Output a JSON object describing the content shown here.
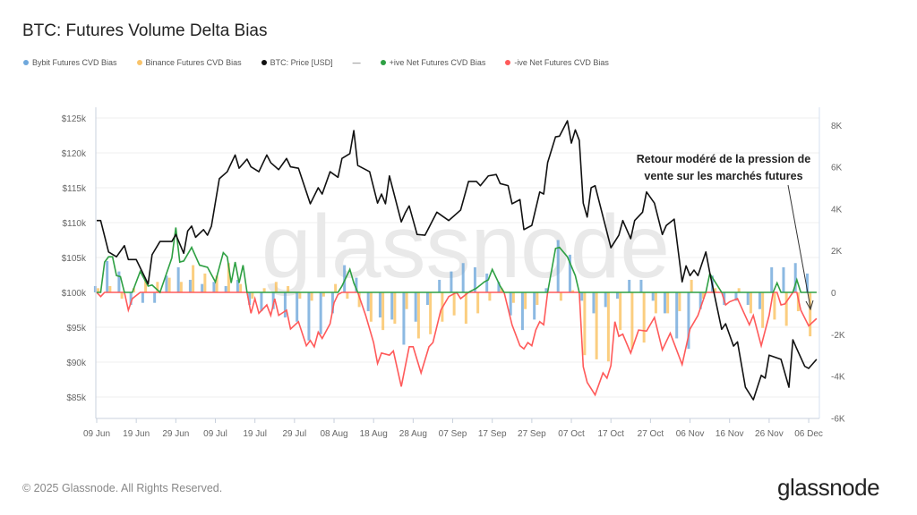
{
  "title": "BTC: Futures Volume Delta Bias",
  "legend": [
    {
      "label": "Bybit Futures CVD Bias",
      "color": "#6fa8dc"
    },
    {
      "label": "Binance Futures CVD Bias",
      "color": "#f9c46b"
    },
    {
      "label": "BTC: Price [USD]",
      "color": "#111111"
    },
    {
      "label": "—",
      "color": "#555555"
    },
    {
      "label": "+ive Net Futures CVD Bias",
      "color": "#2ea043"
    },
    {
      "label": "-ive Net Futures CVD Bias",
      "color": "#ff5a5a"
    }
  ],
  "footer": "© 2025 Glassnode. All Rights Reserved.",
  "logo": "glassnode",
  "watermark": "glassnode",
  "chart_data": {
    "type": "bar+line",
    "title": "BTC: Futures Volume Delta Bias",
    "annotation": [
      "Retour modéré de la pression de",
      "vente sur les marchés futures"
    ],
    "grid": true,
    "legend_position": "top-left",
    "x_ticks": [
      {
        "label": "09 Jun",
        "date": "2025-06-09"
      },
      {
        "label": "19 Jun",
        "date": "2025-06-19"
      },
      {
        "label": "29 Jun",
        "date": "2025-06-29"
      },
      {
        "label": "09 Jul",
        "date": "2025-07-09"
      },
      {
        "label": "19 Jul",
        "date": "2025-07-19"
      },
      {
        "label": "29 Jul",
        "date": "2025-07-29"
      },
      {
        "label": "08 Aug",
        "date": "2025-08-08"
      },
      {
        "label": "18 Aug",
        "date": "2025-08-18"
      },
      {
        "label": "28 Aug",
        "date": "2025-08-28"
      },
      {
        "label": "07 Sep",
        "date": "2025-09-07"
      },
      {
        "label": "17 Sep",
        "date": "2025-09-17"
      },
      {
        "label": "27 Sep",
        "date": "2025-09-27"
      },
      {
        "label": "07 Oct",
        "date": "2025-10-07"
      },
      {
        "label": "17 Oct",
        "date": "2025-10-17"
      },
      {
        "label": "27 Oct",
        "date": "2025-10-27"
      },
      {
        "label": "06 Nov",
        "date": "2025-11-06"
      },
      {
        "label": "16 Nov",
        "date": "2025-11-16"
      },
      {
        "label": "26 Nov",
        "date": "2025-11-26"
      },
      {
        "label": "06 Dec",
        "date": "2025-12-06"
      }
    ],
    "left_axis": {
      "unit": "USD (thousands)",
      "ylim": [
        82,
        128
      ],
      "ticks": [
        {
          "label": "$125k",
          "value": 125
        },
        {
          "label": "$120k",
          "value": 120
        },
        {
          "label": "$115k",
          "value": 115
        },
        {
          "label": "$110k",
          "value": 110
        },
        {
          "label": "$105k",
          "value": 105
        },
        {
          "label": "$100k",
          "value": 100
        },
        {
          "label": "$95k",
          "value": 95
        },
        {
          "label": "$90k",
          "value": 90
        },
        {
          "label": "$85k",
          "value": 85
        }
      ]
    },
    "right_axis": {
      "ylim": [
        -6000,
        8500
      ],
      "ticks": [
        {
          "label": "8K",
          "value": 8000
        },
        {
          "label": "6K",
          "value": 6000
        },
        {
          "label": "4K",
          "value": 4000
        },
        {
          "label": "2K",
          "value": 2000
        },
        {
          "label": "0",
          "value": 0
        },
        {
          "label": "-2K",
          "value": -2000
        },
        {
          "label": "-4K",
          "value": -4000
        },
        {
          "label": "-6K",
          "value": -6000
        }
      ]
    },
    "bars": {
      "dates": [
        "2025-06-09",
        "2025-06-12",
        "2025-06-15",
        "2025-06-18",
        "2025-06-21",
        "2025-06-24",
        "2025-06-27",
        "2025-06-30",
        "2025-07-03",
        "2025-07-06",
        "2025-07-09",
        "2025-07-12",
        "2025-07-15",
        "2025-07-18",
        "2025-07-21",
        "2025-07-24",
        "2025-07-27",
        "2025-07-30",
        "2025-08-02",
        "2025-08-05",
        "2025-08-08",
        "2025-08-11",
        "2025-08-14",
        "2025-08-17",
        "2025-08-20",
        "2025-08-23",
        "2025-08-26",
        "2025-08-29",
        "2025-09-01",
        "2025-09-04",
        "2025-09-07",
        "2025-09-10",
        "2025-09-13",
        "2025-09-16",
        "2025-09-19",
        "2025-09-22",
        "2025-09-25",
        "2025-09-28",
        "2025-10-01",
        "2025-10-04",
        "2025-10-07",
        "2025-10-10",
        "2025-10-13",
        "2025-10-16",
        "2025-10-19",
        "2025-10-22",
        "2025-10-25",
        "2025-10-28",
        "2025-10-31",
        "2025-11-03",
        "2025-11-06",
        "2025-11-09",
        "2025-11-12",
        "2025-11-15",
        "2025-11-18",
        "2025-11-21",
        "2025-11-24",
        "2025-11-27",
        "2025-11-30",
        "2025-12-03",
        "2025-12-06"
      ],
      "bybit": [
        300,
        1500,
        1000,
        -600,
        -500,
        -500,
        800,
        1200,
        600,
        400,
        500,
        300,
        600,
        -600,
        -900,
        -800,
        -1200,
        -1400,
        -2300,
        -2000,
        -1000,
        1300,
        700,
        -900,
        -1200,
        -1300,
        -2500,
        -1400,
        -600,
        600,
        1000,
        1400,
        1200,
        900,
        500,
        -1100,
        -1800,
        -1300,
        200,
        2500,
        1800,
        -400,
        -1000,
        -700,
        -300,
        600,
        600,
        -400,
        -1000,
        -2200,
        -2700,
        -800,
        800,
        -600,
        -400,
        -600,
        -800,
        1200,
        1200,
        1400,
        900
      ],
      "binance": [
        200,
        300,
        -300,
        200,
        600,
        500,
        700,
        500,
        1300,
        900,
        800,
        1400,
        400,
        -300,
        200,
        500,
        300,
        -300,
        -400,
        -200,
        400,
        -300,
        -700,
        -1400,
        -1800,
        -1500,
        -800,
        -2200,
        -2000,
        -1400,
        -1100,
        -1500,
        -1000,
        -400,
        200,
        -500,
        -800,
        -600,
        0,
        -400,
        100,
        -3000,
        -3200,
        -3300,
        -1800,
        -2700,
        -2400,
        -1000,
        -1000,
        -900,
        600,
        -300,
        200,
        0,
        200,
        -1000,
        -1700,
        -1300,
        -1600,
        -900,
        -2100
      ]
    },
    "price": [
      [
        "2025-06-09",
        110.3
      ],
      [
        "2025-06-10",
        110.3
      ],
      [
        "2025-06-12",
        105.8
      ],
      [
        "2025-06-14",
        105.1
      ],
      [
        "2025-06-16",
        106.7
      ],
      [
        "2025-06-17",
        104.7
      ],
      [
        "2025-06-19",
        104.7
      ],
      [
        "2025-06-22",
        101.2
      ],
      [
        "2025-06-23",
        105.4
      ],
      [
        "2025-06-25",
        107.3
      ],
      [
        "2025-06-28",
        107.3
      ],
      [
        "2025-06-29",
        108.3
      ],
      [
        "2025-07-01",
        105.6
      ],
      [
        "2025-07-02",
        108.8
      ],
      [
        "2025-07-03",
        109.5
      ],
      [
        "2025-07-04",
        107.9
      ],
      [
        "2025-07-06",
        109.0
      ],
      [
        "2025-07-07",
        108.2
      ],
      [
        "2025-07-08",
        109.5
      ],
      [
        "2025-07-10",
        116.3
      ],
      [
        "2025-07-12",
        117.3
      ],
      [
        "2025-07-14",
        119.7
      ],
      [
        "2025-07-15",
        117.8
      ],
      [
        "2025-07-17",
        119.1
      ],
      [
        "2025-07-18",
        118.0
      ],
      [
        "2025-07-20",
        117.3
      ],
      [
        "2025-07-22",
        119.7
      ],
      [
        "2025-07-23",
        118.6
      ],
      [
        "2025-07-25",
        117.6
      ],
      [
        "2025-07-27",
        119.2
      ],
      [
        "2025-07-28",
        118.0
      ],
      [
        "2025-07-30",
        117.8
      ],
      [
        "2025-08-02",
        112.7
      ],
      [
        "2025-08-04",
        115.0
      ],
      [
        "2025-08-05",
        114.1
      ],
      [
        "2025-08-07",
        117.3
      ],
      [
        "2025-08-09",
        116.5
      ],
      [
        "2025-08-10",
        119.2
      ],
      [
        "2025-08-12",
        119.9
      ],
      [
        "2025-08-13",
        123.2
      ],
      [
        "2025-08-14",
        118.2
      ],
      [
        "2025-08-17",
        117.3
      ],
      [
        "2025-08-19",
        112.8
      ],
      [
        "2025-08-20",
        114.1
      ],
      [
        "2025-08-21",
        112.7
      ],
      [
        "2025-08-22",
        116.7
      ],
      [
        "2025-08-25",
        110.1
      ],
      [
        "2025-08-26",
        111.4
      ],
      [
        "2025-08-27",
        112.4
      ],
      [
        "2025-08-29",
        108.3
      ],
      [
        "2025-08-31",
        108.2
      ],
      [
        "2025-09-03",
        111.5
      ],
      [
        "2025-09-06",
        110.3
      ],
      [
        "2025-09-09",
        111.8
      ],
      [
        "2025-09-11",
        115.9
      ],
      [
        "2025-09-13",
        115.9
      ],
      [
        "2025-09-14",
        115.3
      ],
      [
        "2025-09-16",
        116.7
      ],
      [
        "2025-09-18",
        116.9
      ],
      [
        "2025-09-19",
        115.6
      ],
      [
        "2025-09-21",
        115.3
      ],
      [
        "2025-09-22",
        112.7
      ],
      [
        "2025-09-24",
        113.3
      ],
      [
        "2025-09-25",
        109.0
      ],
      [
        "2025-09-27",
        109.6
      ],
      [
        "2025-09-29",
        114.4
      ],
      [
        "2025-09-30",
        114.1
      ],
      [
        "2025-10-01",
        118.6
      ],
      [
        "2025-10-03",
        122.3
      ],
      [
        "2025-10-04",
        122.4
      ],
      [
        "2025-10-06",
        124.6
      ],
      [
        "2025-10-07",
        121.4
      ],
      [
        "2025-10-08",
        123.3
      ],
      [
        "2025-10-09",
        121.8
      ],
      [
        "2025-10-10",
        112.8
      ],
      [
        "2025-10-11",
        110.8
      ],
      [
        "2025-10-12",
        115.0
      ],
      [
        "2025-10-13",
        115.3
      ],
      [
        "2025-10-17",
        106.4
      ],
      [
        "2025-10-19",
        108.2
      ],
      [
        "2025-10-20",
        110.3
      ],
      [
        "2025-10-22",
        107.7
      ],
      [
        "2025-10-23",
        110.3
      ],
      [
        "2025-10-25",
        111.5
      ],
      [
        "2025-10-26",
        114.4
      ],
      [
        "2025-10-28",
        112.8
      ],
      [
        "2025-10-30",
        108.3
      ],
      [
        "2025-10-31",
        109.6
      ],
      [
        "2025-11-02",
        110.5
      ],
      [
        "2025-11-04",
        101.5
      ],
      [
        "2025-11-05",
        103.8
      ],
      [
        "2025-11-06",
        102.4
      ],
      [
        "2025-11-07",
        103.2
      ],
      [
        "2025-11-08",
        102.4
      ],
      [
        "2025-11-10",
        105.8
      ],
      [
        "2025-11-11",
        102.8
      ],
      [
        "2025-11-14",
        94.7
      ],
      [
        "2025-11-15",
        95.5
      ],
      [
        "2025-11-17",
        92.3
      ],
      [
        "2025-11-18",
        92.9
      ],
      [
        "2025-11-20",
        86.4
      ],
      [
        "2025-11-22",
        84.6
      ],
      [
        "2025-11-24",
        88.1
      ],
      [
        "2025-11-25",
        87.7
      ],
      [
        "2025-11-26",
        91.0
      ],
      [
        "2025-11-29",
        90.4
      ],
      [
        "2025-12-01",
        86.4
      ],
      [
        "2025-12-02",
        93.2
      ],
      [
        "2025-12-03",
        91.9
      ],
      [
        "2025-12-05",
        89.4
      ],
      [
        "2025-12-06",
        89.1
      ],
      [
        "2025-12-08",
        90.4
      ]
    ],
    "net_cvd": [
      [
        "2025-06-09",
        0
      ],
      [
        "2025-06-10",
        -200
      ],
      [
        "2025-06-11",
        1450
      ],
      [
        "2025-06-12",
        1700
      ],
      [
        "2025-06-13",
        1700
      ],
      [
        "2025-06-14",
        800
      ],
      [
        "2025-06-15",
        750
      ],
      [
        "2025-06-16",
        0
      ],
      [
        "2025-06-17",
        -850
      ],
      [
        "2025-06-18",
        -300
      ],
      [
        "2025-06-20",
        1000
      ],
      [
        "2025-06-22",
        300
      ],
      [
        "2025-06-23",
        350
      ],
      [
        "2025-06-25",
        0
      ],
      [
        "2025-06-28",
        1650
      ],
      [
        "2025-06-29",
        3100
      ],
      [
        "2025-06-30",
        1450
      ],
      [
        "2025-07-01",
        1500
      ],
      [
        "2025-07-03",
        2150
      ],
      [
        "2025-07-05",
        1300
      ],
      [
        "2025-07-07",
        1200
      ],
      [
        "2025-07-09",
        500
      ],
      [
        "2025-07-11",
        1900
      ],
      [
        "2025-07-12",
        1700
      ],
      [
        "2025-07-13",
        450
      ],
      [
        "2025-07-14",
        1450
      ],
      [
        "2025-07-15",
        450
      ],
      [
        "2025-07-16",
        1300
      ],
      [
        "2025-07-17",
        0
      ],
      [
        "2025-07-18",
        -1000
      ],
      [
        "2025-07-19",
        -300
      ],
      [
        "2025-07-20",
        -1000
      ],
      [
        "2025-07-22",
        -600
      ],
      [
        "2025-07-23",
        -1100
      ],
      [
        "2025-07-24",
        -300
      ],
      [
        "2025-07-25",
        -1100
      ],
      [
        "2025-07-27",
        -850
      ],
      [
        "2025-07-28",
        -1750
      ],
      [
        "2025-07-30",
        -1400
      ],
      [
        "2025-08-01",
        -2550
      ],
      [
        "2025-08-02",
        -2300
      ],
      [
        "2025-08-03",
        -2600
      ],
      [
        "2025-08-04",
        -1900
      ],
      [
        "2025-08-05",
        -2200
      ],
      [
        "2025-08-07",
        -1500
      ],
      [
        "2025-08-08",
        -500
      ],
      [
        "2025-08-09",
        -100
      ],
      [
        "2025-08-10",
        300
      ],
      [
        "2025-08-12",
        1100
      ],
      [
        "2025-08-13",
        450
      ],
      [
        "2025-08-14",
        0
      ],
      [
        "2025-08-16",
        -1100
      ],
      [
        "2025-08-18",
        -2400
      ],
      [
        "2025-08-19",
        -3400
      ],
      [
        "2025-08-20",
        -2900
      ],
      [
        "2025-08-22",
        -3000
      ],
      [
        "2025-08-23",
        -2800
      ],
      [
        "2025-08-25",
        -4500
      ],
      [
        "2025-08-27",
        -2600
      ],
      [
        "2025-08-28",
        -2600
      ],
      [
        "2025-08-30",
        -3850
      ],
      [
        "2025-09-01",
        -2600
      ],
      [
        "2025-09-02",
        -2400
      ],
      [
        "2025-09-04",
        -850
      ],
      [
        "2025-09-06",
        -200
      ],
      [
        "2025-09-08",
        0
      ],
      [
        "2025-09-09",
        -300
      ],
      [
        "2025-09-11",
        0
      ],
      [
        "2025-09-13",
        200
      ],
      [
        "2025-09-15",
        500
      ],
      [
        "2025-09-16",
        600
      ],
      [
        "2025-09-17",
        1100
      ],
      [
        "2025-09-19",
        300
      ],
      [
        "2025-09-20",
        0
      ],
      [
        "2025-09-22",
        -1550
      ],
      [
        "2025-09-24",
        -2550
      ],
      [
        "2025-09-25",
        -2700
      ],
      [
        "2025-09-26",
        -2400
      ],
      [
        "2025-09-27",
        -2550
      ],
      [
        "2025-09-28",
        -1800
      ],
      [
        "2025-09-29",
        -1400
      ],
      [
        "2025-09-30",
        -1550
      ],
      [
        "2025-10-01",
        0
      ],
      [
        "2025-10-03",
        2100
      ],
      [
        "2025-10-04",
        2150
      ],
      [
        "2025-10-06",
        1700
      ],
      [
        "2025-10-08",
        800
      ],
      [
        "2025-10-09",
        0
      ],
      [
        "2025-10-10",
        -3550
      ],
      [
        "2025-10-11",
        -4300
      ],
      [
        "2025-10-13",
        -4900
      ],
      [
        "2025-10-15",
        -3850
      ],
      [
        "2025-10-16",
        -4100
      ],
      [
        "2025-10-17",
        -3500
      ],
      [
        "2025-10-18",
        -1400
      ],
      [
        "2025-10-19",
        -2100
      ],
      [
        "2025-10-20",
        -2000
      ],
      [
        "2025-10-22",
        -2900
      ],
      [
        "2025-10-24",
        -1800
      ],
      [
        "2025-10-26",
        -1850
      ],
      [
        "2025-10-28",
        -1200
      ],
      [
        "2025-10-30",
        -2750
      ],
      [
        "2025-11-01",
        -1950
      ],
      [
        "2025-11-02",
        -2450
      ],
      [
        "2025-11-04",
        -3450
      ],
      [
        "2025-11-06",
        -1750
      ],
      [
        "2025-11-08",
        -1100
      ],
      [
        "2025-11-10",
        0
      ],
      [
        "2025-11-11",
        900
      ],
      [
        "2025-11-13",
        300
      ],
      [
        "2025-11-14",
        0
      ],
      [
        "2025-11-15",
        -600
      ],
      [
        "2025-11-16",
        -450
      ],
      [
        "2025-11-18",
        -300
      ],
      [
        "2025-11-21",
        -1550
      ],
      [
        "2025-11-22",
        -1100
      ],
      [
        "2025-11-24",
        -2550
      ],
      [
        "2025-11-26",
        -1100
      ],
      [
        "2025-11-27",
        0
      ],
      [
        "2025-11-28",
        450
      ],
      [
        "2025-11-29",
        -600
      ],
      [
        "2025-11-30",
        -550
      ],
      [
        "2025-12-02",
        0
      ],
      [
        "2025-12-03",
        600
      ],
      [
        "2025-12-04",
        -850
      ],
      [
        "2025-12-06",
        -1600
      ],
      [
        "2025-12-08",
        -1250
      ]
    ]
  }
}
